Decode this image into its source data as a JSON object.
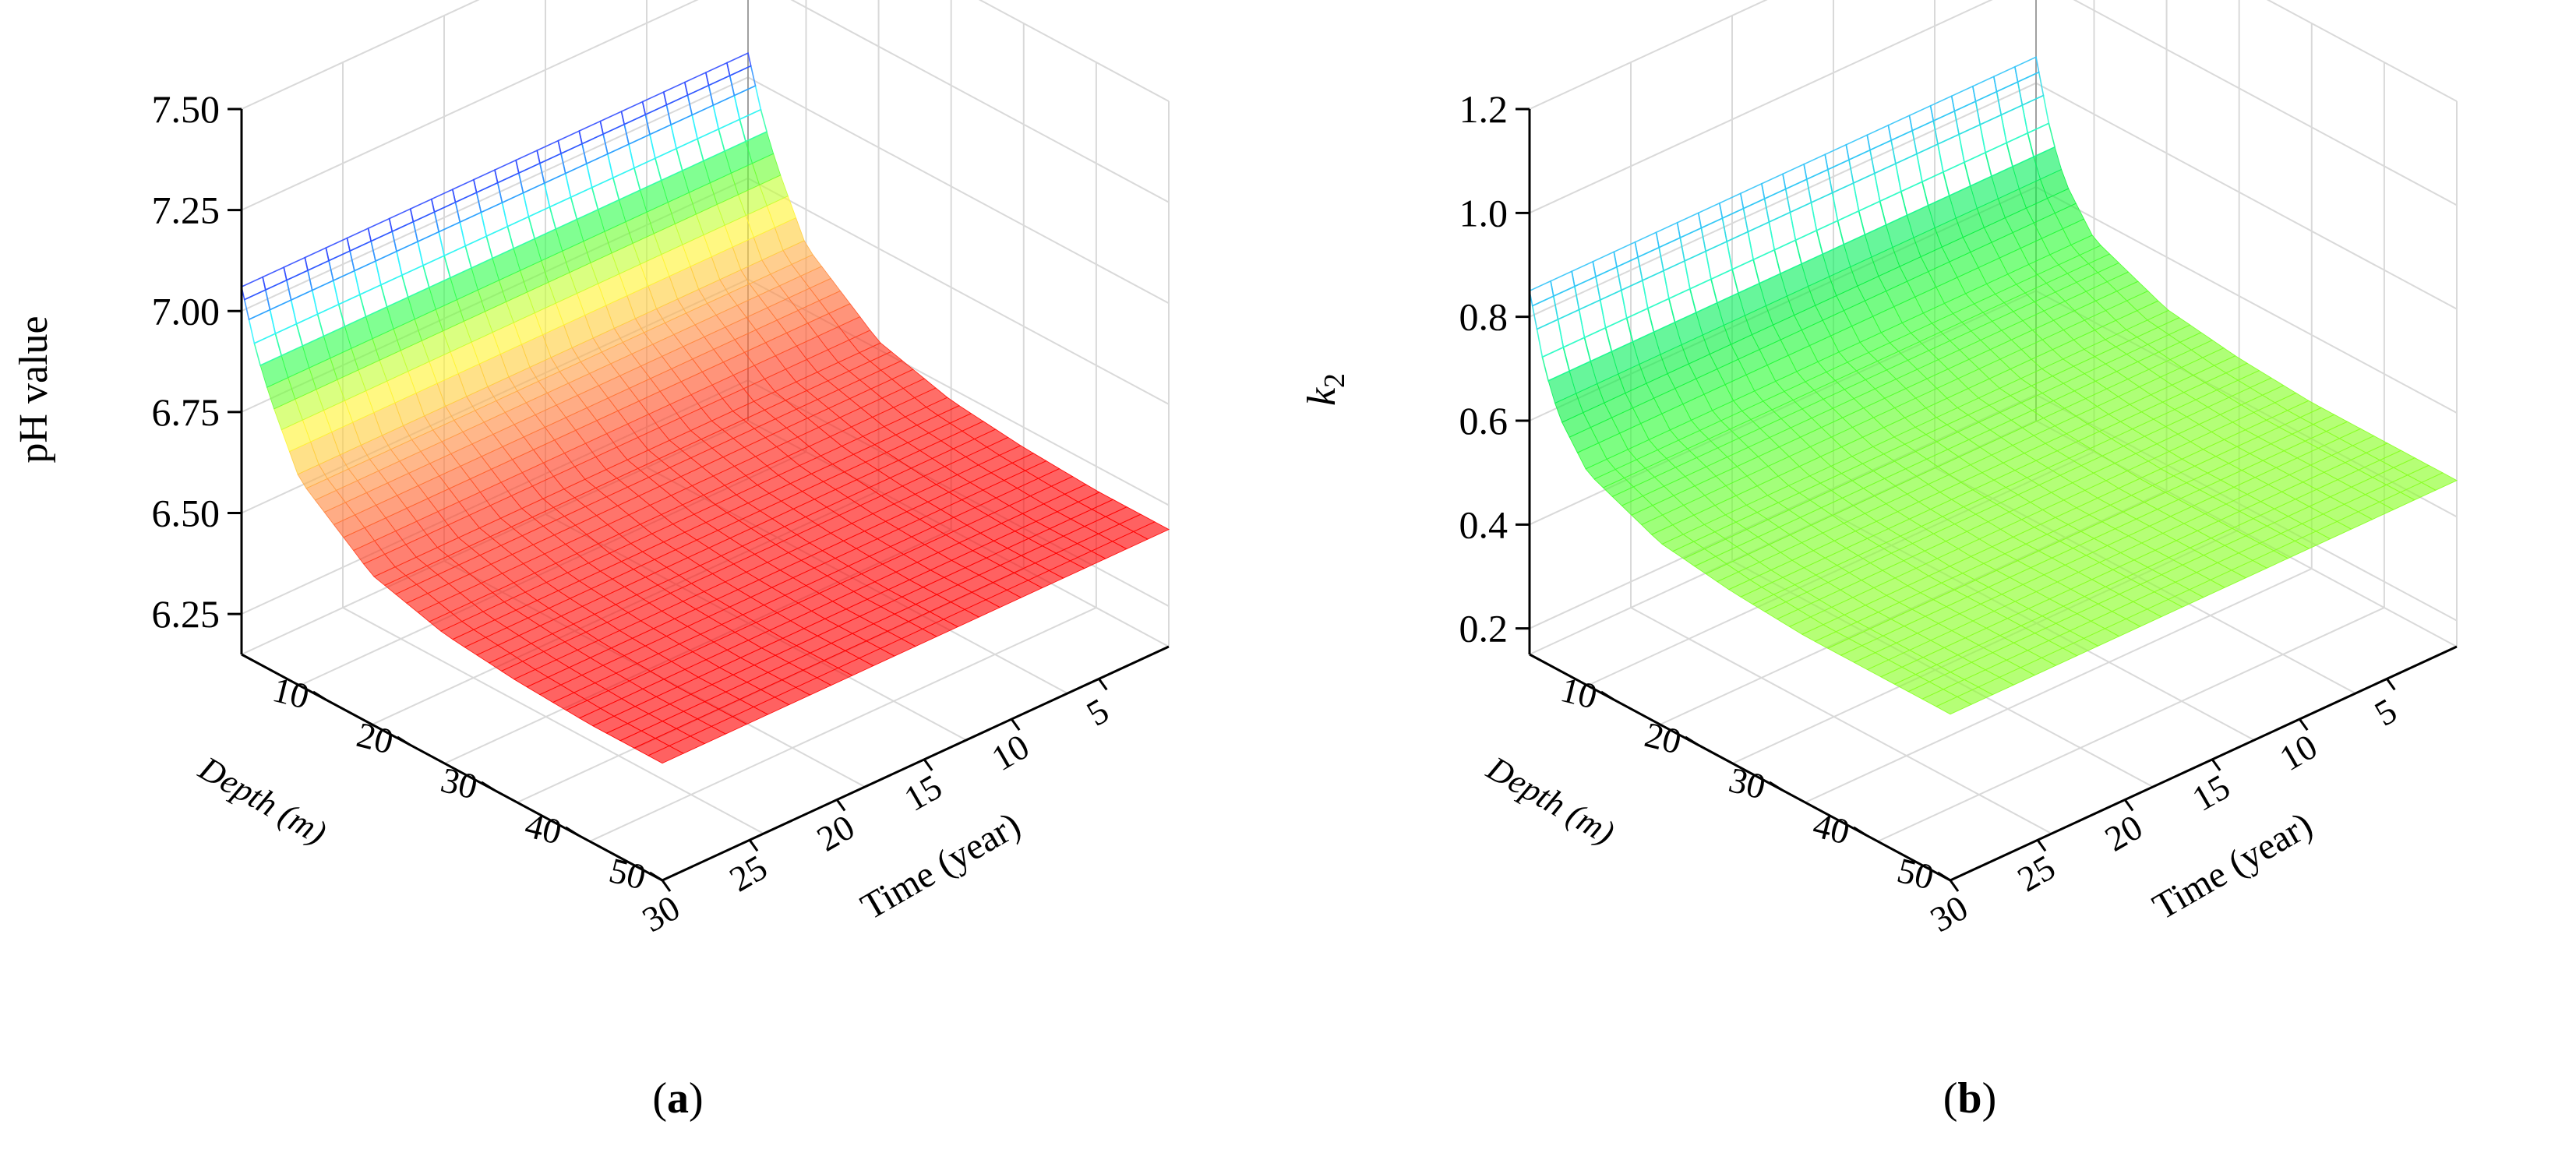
{
  "chart_data": [
    {
      "type": "surface3d",
      "panel_label": "a",
      "zlabel": "pH value",
      "xlabel": "Depth (m)",
      "ylabel": "Time (year)",
      "z_ticks": [
        "6.25",
        "6.50",
        "6.75",
        "7.00",
        "7.25",
        "7.50"
      ],
      "depth_ticks": [
        "10",
        "20",
        "30",
        "40",
        "50"
      ],
      "time_ticks": [
        "5",
        "10",
        "15",
        "20",
        "25",
        "30"
      ],
      "zlim": [
        6.15,
        7.5
      ],
      "depth_range": [
        0,
        50
      ],
      "time_range": [
        1,
        30
      ],
      "surface": {
        "note_free": true,
        "depth_samples": [
          0,
          10,
          20,
          30,
          40,
          50
        ],
        "time_samples": [
          1,
          2,
          3,
          5,
          10,
          15,
          20,
          25,
          30
        ],
        "z_at_depth0": [
          7.06,
          6.92,
          6.82,
          6.66,
          6.52,
          6.47,
          6.45,
          6.44,
          6.44
        ],
        "z_at_depth50": [
          7.06,
          6.92,
          6.82,
          6.66,
          6.52,
          6.47,
          6.45,
          6.44,
          6.44
        ]
      },
      "colormap": [
        "#ff0000",
        "#ff3b1f",
        "#ffa64d",
        "#ffff33",
        "#33ff33",
        "#33ffff",
        "#3333ff"
      ]
    },
    {
      "type": "surface3d",
      "panel_label": "b",
      "zlabel": "k",
      "zlabel_sub": "2",
      "xlabel": "Depth (m)",
      "ylabel": "Time (year)",
      "z_ticks": [
        "0.2",
        "0.4",
        "0.6",
        "0.8",
        "1.0",
        "1.2"
      ],
      "depth_ticks": [
        "10",
        "20",
        "30",
        "40",
        "50"
      ],
      "time_ticks": [
        "5",
        "10",
        "15",
        "20",
        "25",
        "30"
      ],
      "zlim": [
        0.15,
        1.2
      ],
      "depth_range": [
        0,
        50
      ],
      "time_range": [
        1,
        30
      ],
      "surface": {
        "depth_samples": [
          0,
          10,
          20,
          30,
          40,
          50
        ],
        "time_samples": [
          1,
          2,
          3,
          5,
          10,
          15,
          20,
          25,
          30
        ],
        "z_at_depth0": [
          0.85,
          0.72,
          0.64,
          0.56,
          0.5,
          0.48,
          0.47,
          0.47,
          0.47
        ],
        "z_at_depth50": [
          0.85,
          0.72,
          0.64,
          0.56,
          0.5,
          0.48,
          0.47,
          0.47,
          0.47
        ]
      },
      "colormap": [
        "#88ff22",
        "#33ff33",
        "#00ee44",
        "#33ffcc",
        "#33bbff"
      ]
    }
  ],
  "captions": [
    "a",
    "b"
  ]
}
